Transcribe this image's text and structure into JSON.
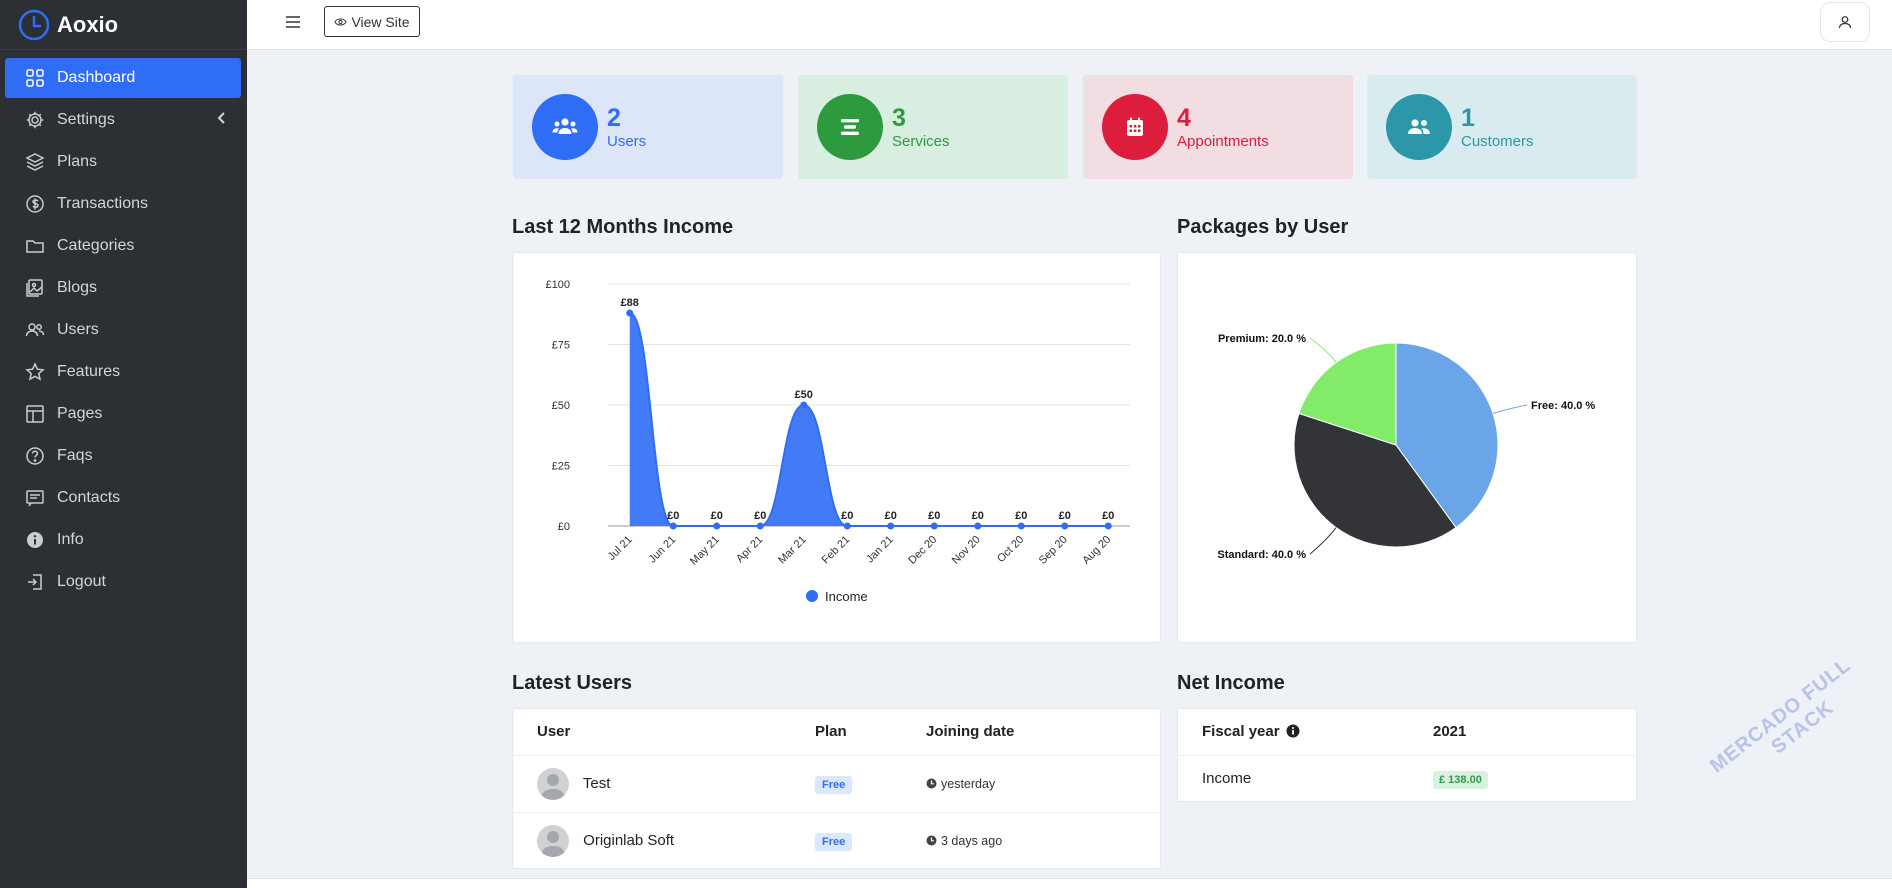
{
  "app": {
    "name": "Aoxio"
  },
  "sidebar": {
    "items": [
      {
        "label": "Dashboard",
        "icon": "grid-icon",
        "active": true
      },
      {
        "label": "Settings",
        "icon": "gear-icon"
      },
      {
        "label": "Plans",
        "icon": "layers-icon"
      },
      {
        "label": "Transactions",
        "icon": "dollar-circle-icon"
      },
      {
        "label": "Categories",
        "icon": "folder-icon"
      },
      {
        "label": "Blogs",
        "icon": "image-icon"
      },
      {
        "label": "Users",
        "icon": "users-icon"
      },
      {
        "label": "Features",
        "icon": "star-icon"
      },
      {
        "label": "Pages",
        "icon": "layout-icon"
      },
      {
        "label": "Faqs",
        "icon": "question-circle-icon"
      },
      {
        "label": "Contacts",
        "icon": "message-icon"
      },
      {
        "label": "Info",
        "icon": "info-circle-icon"
      },
      {
        "label": "Logout",
        "icon": "logout-icon"
      }
    ]
  },
  "topbar": {
    "view_site": "View Site"
  },
  "stats": [
    {
      "value": "2",
      "label": "Users",
      "color": "#2f6df6",
      "bg": "#dce6f8",
      "icon": "users-icon"
    },
    {
      "value": "3",
      "label": "Services",
      "color": "#2e9a3e",
      "bg": "#d8eee0",
      "icon": "list-icon"
    },
    {
      "value": "4",
      "label": "Appointments",
      "color": "#dc1e3c",
      "bg": "#f2dde2",
      "icon": "calendar-icon"
    },
    {
      "value": "1",
      "label": "Customers",
      "color": "#2b97a8",
      "bg": "#d8ecf0",
      "icon": "users-icon"
    }
  ],
  "income_section": {
    "title": "Last 12 Months Income"
  },
  "packages_section": {
    "title": "Packages by User"
  },
  "users_section": {
    "title": "Latest Users",
    "columns": [
      "User",
      "Plan",
      "Joining date"
    ],
    "rows": [
      {
        "name": "Test",
        "plan": "Free",
        "date": "yesterday"
      },
      {
        "name": "Originlab Soft",
        "plan": "Free",
        "date": "3 days ago"
      }
    ]
  },
  "net_income": {
    "title": "Net Income",
    "fiscal_label": "Fiscal year",
    "year": "2021",
    "income_label": "Income",
    "income_value": "£ 138.00"
  },
  "watermark": {
    "line1": "MERCADO FULL",
    "line2": "STACK"
  },
  "chart_data": [
    {
      "type": "area",
      "categories": [
        "Jul 21",
        "Jun 21",
        "May 21",
        "Apr 21",
        "Mar 21",
        "Feb 21",
        "Jan 21",
        "Dec 20",
        "Nov 20",
        "Oct 20",
        "Sep 20",
        "Aug 20"
      ],
      "series": [
        {
          "name": "Income",
          "values": [
            88,
            0,
            0,
            0,
            50,
            0,
            0,
            0,
            0,
            0,
            0,
            0
          ],
          "color": "#2f6df6"
        }
      ],
      "data_labels": [
        "£88",
        "£0",
        "£0",
        "£0",
        "£50",
        "£0",
        "£0",
        "£0",
        "£0",
        "£0",
        "£0",
        "£0"
      ],
      "yticks": [
        "£0",
        "£25",
        "£50",
        "£75",
        "£100"
      ],
      "ylim": [
        0,
        100
      ],
      "legend": "bottom"
    },
    {
      "type": "pie",
      "slices": [
        {
          "label": "Free",
          "value": 40.0,
          "text": "Free: 40.0 %",
          "color": "#6aa5e8"
        },
        {
          "label": "Standard",
          "value": 40.0,
          "text": "Standard: 40.0 %",
          "color": "#333438"
        },
        {
          "label": "Premium",
          "value": 20.0,
          "text": "Premium: 20.0 %",
          "color": "#82ec6a"
        }
      ]
    }
  ]
}
